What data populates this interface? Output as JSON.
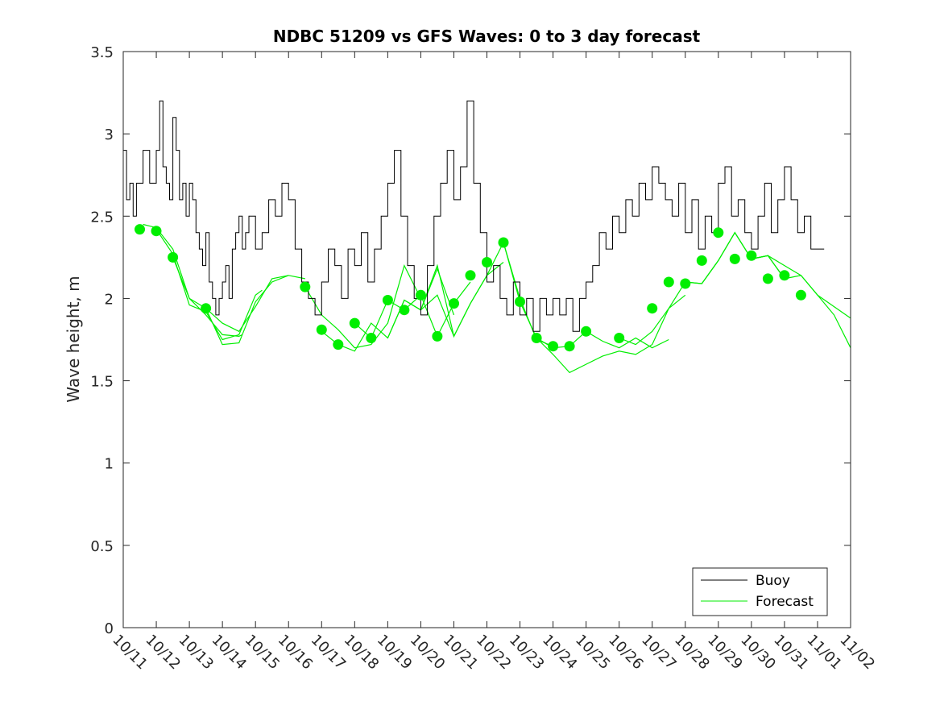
{
  "chart_data": {
    "type": "line",
    "title": "NDBC 51209 vs GFS Waves: 0 to 3 day forecast",
    "xlabel": "",
    "ylabel": "Wave height, m",
    "xlim": [
      0,
      22
    ],
    "ylim": [
      0,
      3.5
    ],
    "yticks": [
      0,
      0.5,
      1,
      1.5,
      2,
      2.5,
      3,
      3.5
    ],
    "ytick_labels": [
      "0",
      "0.5",
      "1",
      "1.5",
      "2",
      "2.5",
      "3",
      "3.5"
    ],
    "xtick_labels": [
      "10/11",
      "10/12",
      "10/13",
      "10/14",
      "10/15",
      "10/16",
      "10/17",
      "10/18",
      "10/19",
      "10/20",
      "10/21",
      "10/22",
      "10/23",
      "10/24",
      "10/25",
      "10/26",
      "10/27",
      "10/28",
      "10/29",
      "10/30",
      "10/31",
      "11/01",
      "11/02"
    ],
    "grid": false,
    "legend": {
      "location": "bottom-right",
      "entries": [
        "Buoy",
        "Forecast"
      ]
    },
    "colors": {
      "buoy": "#000000",
      "forecast": "#00ee00",
      "axis": "#262626"
    },
    "series": [
      {
        "name": "Buoy",
        "x": [
          0,
          0.1,
          0.2,
          0.3,
          0.4,
          0.6,
          0.8,
          1.0,
          1.1,
          1.2,
          1.3,
          1.4,
          1.5,
          1.6,
          1.7,
          1.8,
          1.9,
          2.0,
          2.1,
          2.2,
          2.3,
          2.4,
          2.5,
          2.6,
          2.7,
          2.8,
          2.9,
          3.0,
          3.1,
          3.2,
          3.3,
          3.4,
          3.5,
          3.6,
          3.7,
          3.8,
          4.0,
          4.2,
          4.4,
          4.6,
          4.8,
          5.0,
          5.2,
          5.4,
          5.6,
          5.8,
          6.0,
          6.2,
          6.4,
          6.6,
          6.8,
          7.0,
          7.2,
          7.4,
          7.6,
          7.8,
          8.0,
          8.2,
          8.4,
          8.6,
          8.8,
          9.0,
          9.2,
          9.4,
          9.6,
          9.8,
          10.0,
          10.2,
          10.4,
          10.6,
          10.8,
          11.0,
          11.2,
          11.4,
          11.6,
          11.8,
          12.0,
          12.2,
          12.4,
          12.6,
          12.8,
          13.0,
          13.2,
          13.4,
          13.6,
          13.8,
          14.0,
          14.2,
          14.4,
          14.6,
          14.8,
          15.0,
          15.2,
          15.4,
          15.6,
          15.8,
          16.0,
          16.2,
          16.4,
          16.6,
          16.8,
          17.0,
          17.2,
          17.4,
          17.6,
          17.8,
          18.0,
          18.2,
          18.4,
          18.6,
          18.8,
          19.0,
          19.2,
          19.4,
          19.6,
          19.8,
          20.0,
          20.2,
          20.4,
          20.6,
          20.8,
          21.0,
          21.2
        ],
        "values": [
          2.9,
          2.6,
          2.7,
          2.5,
          2.7,
          2.9,
          2.7,
          2.9,
          3.2,
          2.8,
          2.7,
          2.6,
          3.1,
          2.9,
          2.6,
          2.7,
          2.5,
          2.7,
          2.6,
          2.4,
          2.3,
          2.2,
          2.4,
          2.1,
          2.0,
          1.9,
          2.0,
          2.1,
          2.2,
          2.0,
          2.3,
          2.4,
          2.5,
          2.3,
          2.4,
          2.5,
          2.3,
          2.4,
          2.6,
          2.5,
          2.7,
          2.6,
          2.3,
          2.1,
          2.0,
          1.9,
          2.1,
          2.3,
          2.2,
          2.0,
          2.3,
          2.2,
          2.4,
          2.1,
          2.3,
          2.5,
          2.7,
          2.9,
          2.5,
          2.2,
          2.0,
          1.9,
          2.2,
          2.5,
          2.7,
          2.9,
          2.6,
          2.8,
          3.2,
          2.7,
          2.4,
          2.1,
          2.2,
          2.0,
          1.9,
          2.1,
          1.9,
          2.0,
          1.8,
          2.0,
          1.9,
          2.0,
          1.9,
          2.0,
          1.8,
          2.0,
          2.1,
          2.2,
          2.4,
          2.3,
          2.5,
          2.4,
          2.6,
          2.5,
          2.7,
          2.6,
          2.8,
          2.7,
          2.6,
          2.5,
          2.7,
          2.4,
          2.6,
          2.3,
          2.5,
          2.4,
          2.7,
          2.8,
          2.5,
          2.6,
          2.4,
          2.3,
          2.5,
          2.7,
          2.4,
          2.6,
          2.8,
          2.6,
          2.4,
          2.5,
          2.3,
          2.3,
          2.3
        ]
      },
      {
        "name": "Forecast",
        "runs": [
          {
            "x": [
              0.6,
              1.0,
              1.5,
              2.0,
              2.5,
              3.0,
              3.5,
              3.6
            ],
            "values": [
              2.45,
              2.43,
              2.3,
              2.0,
              1.9,
              1.78,
              1.77,
              1.78
            ]
          },
          {
            "x": [
              1.0,
              1.5,
              2.0,
              2.5,
              3.0,
              3.5,
              4.0,
              4.2
            ],
            "values": [
              2.42,
              2.27,
              1.96,
              1.92,
              1.75,
              1.78,
              2.02,
              2.05
            ]
          },
          {
            "x": [
              1.5,
              2.0,
              2.5,
              3.0,
              3.5,
              4.0,
              4.5,
              5.0
            ],
            "values": [
              2.25,
              2.0,
              1.94,
              1.72,
              1.73,
              1.98,
              2.1,
              2.14
            ]
          },
          {
            "x": [
              2.5,
              3.0,
              3.5,
              4.0,
              4.5,
              5.0,
              5.5
            ],
            "values": [
              1.94,
              1.85,
              1.8,
              1.95,
              2.12,
              2.14,
              2.12
            ]
          },
          {
            "x": [
              5.5,
              6.0,
              6.5,
              7.0,
              7.5,
              8.0,
              8.5,
              9.0
            ],
            "values": [
              2.07,
              1.9,
              1.81,
              1.7,
              1.72,
              1.85,
              2.2,
              2.0
            ]
          },
          {
            "x": [
              6.0,
              6.5,
              7.0,
              7.5,
              8.0,
              8.5,
              9.0,
              9.5,
              10.0
            ],
            "values": [
              1.8,
              1.72,
              1.68,
              1.85,
              1.76,
              1.99,
              1.93,
              2.18,
              1.9
            ]
          },
          {
            "x": [
              7.0,
              7.5,
              8.0,
              8.5,
              9.0,
              9.5,
              10.0,
              10.5
            ],
            "values": [
              1.85,
              1.76,
              1.99,
              1.93,
              2.02,
              1.77,
              1.97,
              2.1
            ]
          },
          {
            "x": [
              8.0,
              8.5,
              9.0,
              9.5,
              10.0,
              10.5,
              11.0,
              11.5
            ],
            "values": [
              1.76,
              1.99,
              1.93,
              2.2,
              1.77,
              1.97,
              2.14,
              2.22
            ]
          },
          {
            "x": [
              9.0,
              9.5,
              10.0,
              10.5,
              11.0,
              11.5,
              12.0,
              12.5,
              13.0
            ],
            "values": [
              1.93,
              2.02,
              1.77,
              1.97,
              2.14,
              2.34,
              2.0,
              1.75,
              1.71
            ]
          },
          {
            "x": [
              11.5,
              12.0,
              12.5,
              13.0,
              13.5,
              14.0,
              14.5,
              15.0,
              15.5,
              16.0,
              16.5
            ],
            "values": [
              2.34,
              1.98,
              1.76,
              1.7,
              1.71,
              1.8,
              1.74,
              1.7,
              1.76,
              1.7,
              1.75
            ]
          },
          {
            "x": [
              12.5,
              13.0,
              13.5,
              14.0,
              14.5,
              15.0,
              15.5,
              16.0,
              16.5,
              17.0
            ],
            "values": [
              1.76,
              1.66,
              1.55,
              1.6,
              1.65,
              1.68,
              1.66,
              1.72,
              1.94,
              2.02
            ]
          },
          {
            "x": [
              15.0,
              15.5,
              16.0,
              16.5,
              17.0,
              17.5,
              18.0,
              18.5,
              19.0,
              19.5,
              20.0
            ],
            "values": [
              1.76,
              1.72,
              1.8,
              1.94,
              2.1,
              2.09,
              2.23,
              2.4,
              2.24,
              2.26,
              2.12
            ]
          },
          {
            "x": [
              17.0,
              17.5,
              18.0,
              18.5,
              19.0,
              19.5,
              20.0,
              20.5,
              21.0,
              21.5,
              22.0
            ],
            "values": [
              2.1,
              2.09,
              2.23,
              2.4,
              2.24,
              2.26,
              2.12,
              2.14,
              2.02,
              1.9,
              1.7
            ]
          },
          {
            "x": [
              19.0,
              19.5,
              20.0,
              20.5,
              21.0,
              21.5,
              22.0
            ],
            "values": [
              2.24,
              2.26,
              2.2,
              2.14,
              2.02,
              1.95,
              1.88
            ]
          }
        ],
        "markers": {
          "x": [
            0.5,
            1.0,
            1.5,
            2.5,
            5.5,
            6.0,
            6.5,
            7.0,
            7.5,
            8.0,
            8.5,
            9.0,
            9.5,
            10.0,
            10.5,
            11.0,
            11.5,
            12.0,
            12.5,
            13.0,
            13.5,
            14.0,
            15.0,
            16.0,
            16.5,
            17.0,
            17.5,
            18.0,
            18.5,
            19.0,
            19.5,
            20.0,
            20.5
          ],
          "values": [
            2.42,
            2.41,
            2.25,
            1.94,
            2.07,
            1.81,
            1.72,
            1.85,
            1.76,
            1.99,
            1.93,
            2.02,
            1.77,
            1.97,
            2.14,
            2.22,
            2.34,
            1.98,
            1.76,
            1.71,
            1.71,
            1.8,
            1.76,
            1.94,
            2.1,
            2.09,
            2.23,
            2.4,
            2.24,
            2.26,
            2.12,
            2.14,
            2.02
          ]
        }
      }
    ]
  }
}
